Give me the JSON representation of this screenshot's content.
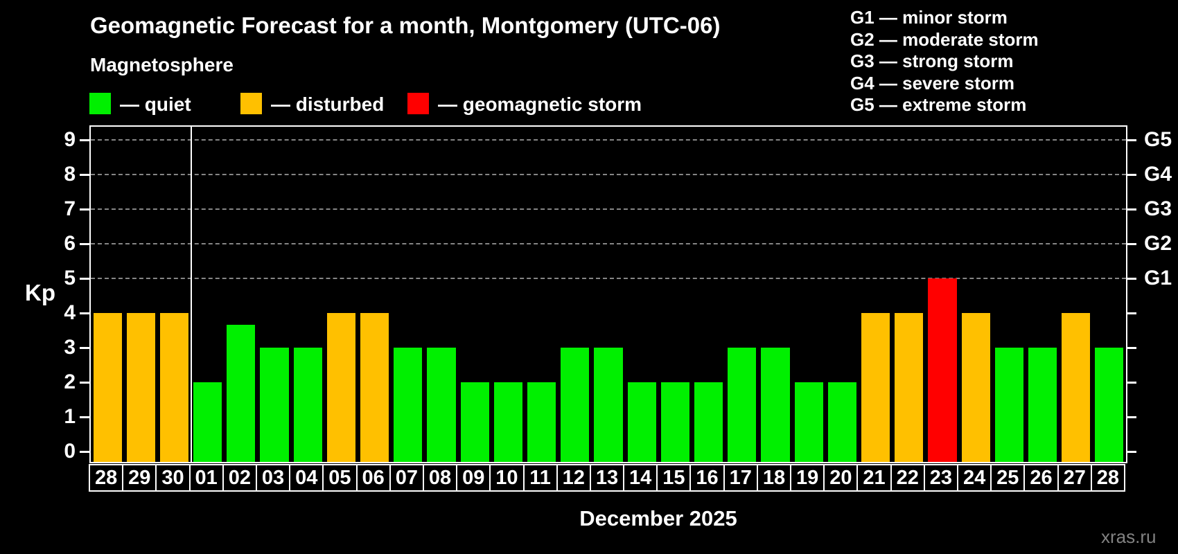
{
  "header": {
    "title": "Geomagnetic Forecast for a month, Montgomery (UTC-06)",
    "subtitle": "Magnetosphere"
  },
  "legend": {
    "items": [
      {
        "key": "quiet",
        "label": "— quiet"
      },
      {
        "key": "disturbed",
        "label": "— disturbed"
      },
      {
        "key": "storm",
        "label": "— geomagnetic storm"
      }
    ]
  },
  "g_scale_legend": {
    "items": [
      "G1 — minor storm",
      "G2 — moderate storm",
      "G3 — strong storm",
      "G4 — severe storm",
      "G5 — extreme storm"
    ]
  },
  "colors": {
    "quiet": "#00f000",
    "disturbed": "#ffc000",
    "storm": "#ff0000",
    "axis": "#ffffff",
    "grid": "#9e9e9e",
    "background": "#000000",
    "watermark_text": "#828282"
  },
  "chart_data": {
    "type": "bar",
    "title": "Geomagnetic Forecast for a month, Montgomery (UTC-06)",
    "ylabel": "Kp",
    "xlabel": "December 2025",
    "ylim": [
      0,
      9
    ],
    "y_ticks": [
      0,
      1,
      2,
      3,
      4,
      5,
      6,
      7,
      8,
      9
    ],
    "gridlines_at": [
      5,
      6,
      7,
      8,
      9
    ],
    "grid": "horizontal dashed lines at Kp 5-9 (G1-G5 storm levels)",
    "legend_position": "top",
    "right_axis": {
      "labels": [
        "G1",
        "G2",
        "G3",
        "G4",
        "G5"
      ],
      "at_values": [
        5,
        6,
        7,
        8,
        9
      ]
    },
    "month_separator_after_index": 2,
    "categories": [
      "28",
      "29",
      "30",
      "01",
      "02",
      "03",
      "04",
      "05",
      "06",
      "07",
      "08",
      "09",
      "10",
      "11",
      "12",
      "13",
      "14",
      "15",
      "16",
      "17",
      "18",
      "19",
      "20",
      "21",
      "22",
      "23",
      "24",
      "25",
      "26",
      "27",
      "28"
    ],
    "values": [
      4,
      4,
      4,
      2,
      3.67,
      3,
      3,
      4,
      4,
      3,
      3,
      2,
      2,
      2,
      3,
      3,
      2,
      2,
      2,
      3,
      3,
      2,
      2,
      4,
      4,
      5,
      4,
      3,
      3,
      4,
      3
    ],
    "statuses": [
      "disturbed",
      "disturbed",
      "disturbed",
      "quiet",
      "quiet",
      "quiet",
      "quiet",
      "disturbed",
      "disturbed",
      "quiet",
      "quiet",
      "quiet",
      "quiet",
      "quiet",
      "quiet",
      "quiet",
      "quiet",
      "quiet",
      "quiet",
      "quiet",
      "quiet",
      "quiet",
      "quiet",
      "disturbed",
      "disturbed",
      "storm",
      "disturbed",
      "quiet",
      "quiet",
      "disturbed",
      "quiet"
    ]
  },
  "watermark": "xras.ru"
}
